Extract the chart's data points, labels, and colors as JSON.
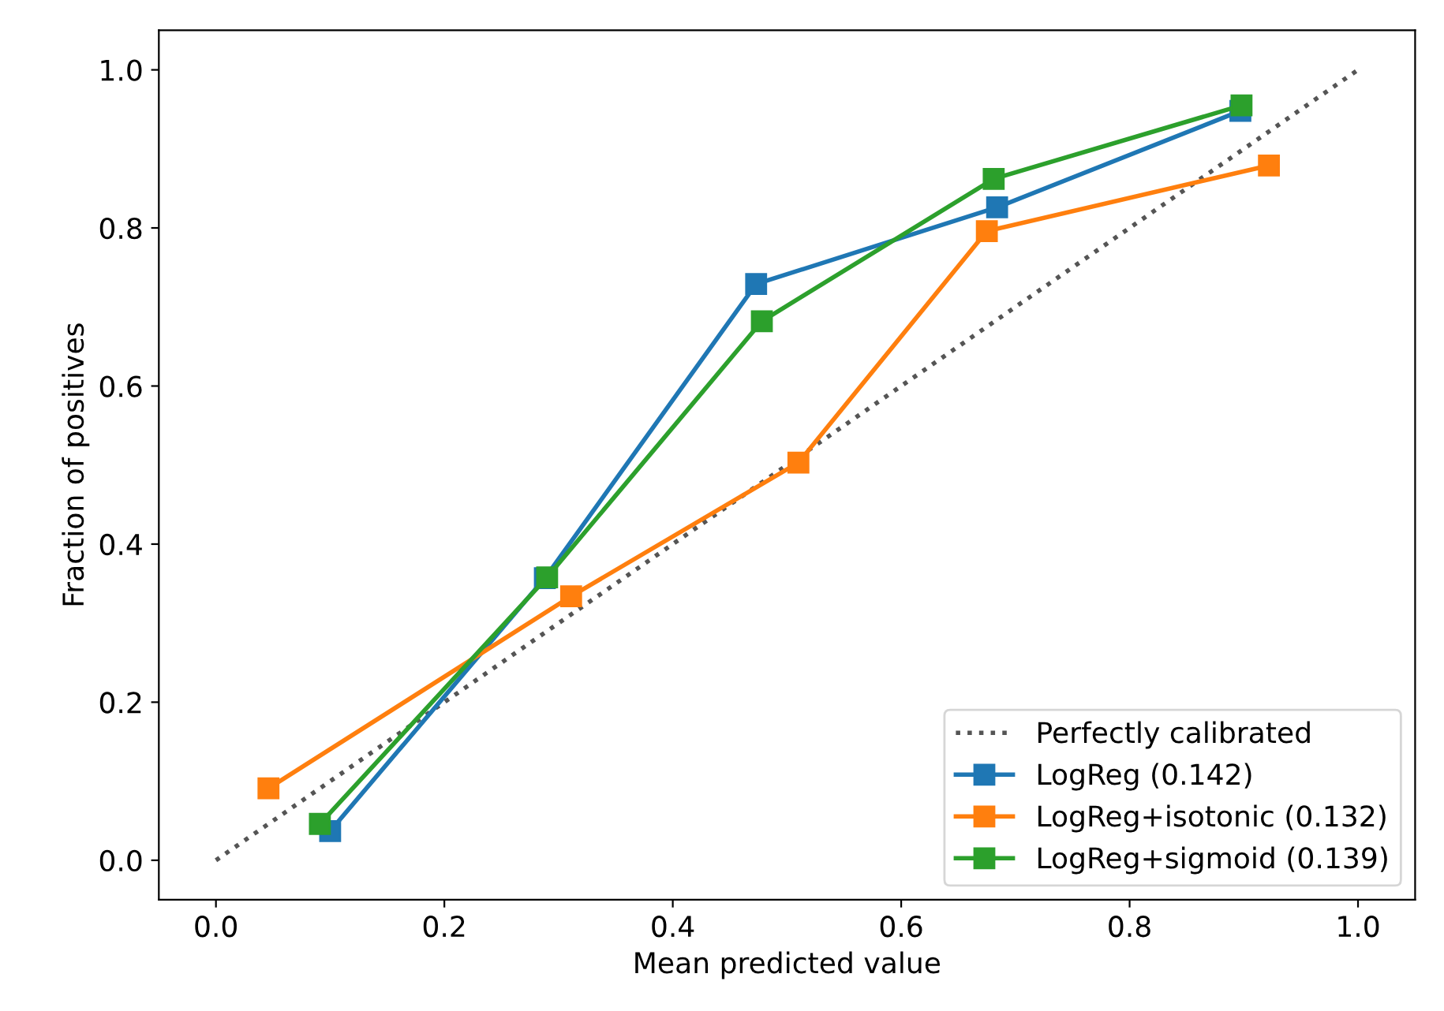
{
  "chart_data": {
    "type": "line",
    "xlabel": "Mean predicted value",
    "ylabel": "Fraction of positives",
    "xlim": [
      -0.05,
      1.05
    ],
    "ylim": [
      -0.05,
      1.05
    ],
    "xticks": [
      {
        "value": 0,
        "label": "0.0"
      },
      0.2,
      0.4,
      0.6,
      0.8,
      {
        "value": 1,
        "label": "1.0"
      }
    ],
    "yticks": [
      {
        "value": 0,
        "label": "0.0"
      },
      0.2,
      0.4,
      0.6,
      0.8,
      {
        "value": 1,
        "label": "1.0"
      }
    ],
    "grid": false,
    "legend": "bottom right",
    "marker": "square",
    "series": [
      {
        "name": "Perfectly calibrated",
        "color": "#555555",
        "line_style": "dotted",
        "marker": "none",
        "x": [
          0,
          1
        ],
        "values": [
          0,
          1
        ]
      },
      {
        "name": "LogReg (0.142)",
        "color": "#1f77b4",
        "x": [
          0.1,
          0.288,
          0.473,
          0.684,
          0.897
        ],
        "values": [
          0.037,
          0.357,
          0.729,
          0.826,
          0.948
        ]
      },
      {
        "name": "LogReg+isotonic (0.132)",
        "color": "#ff7f0e",
        "x": [
          0.046,
          0.311,
          0.51,
          0.675,
          0.922
        ],
        "values": [
          0.091,
          0.334,
          0.503,
          0.796,
          0.879
        ]
      },
      {
        "name": "LogReg+sigmoid (0.139)",
        "color": "#2ca02c",
        "x": [
          0.091,
          0.29,
          0.478,
          0.681,
          0.898
        ],
        "values": [
          0.046,
          0.358,
          0.682,
          0.862,
          0.955
        ]
      }
    ]
  }
}
